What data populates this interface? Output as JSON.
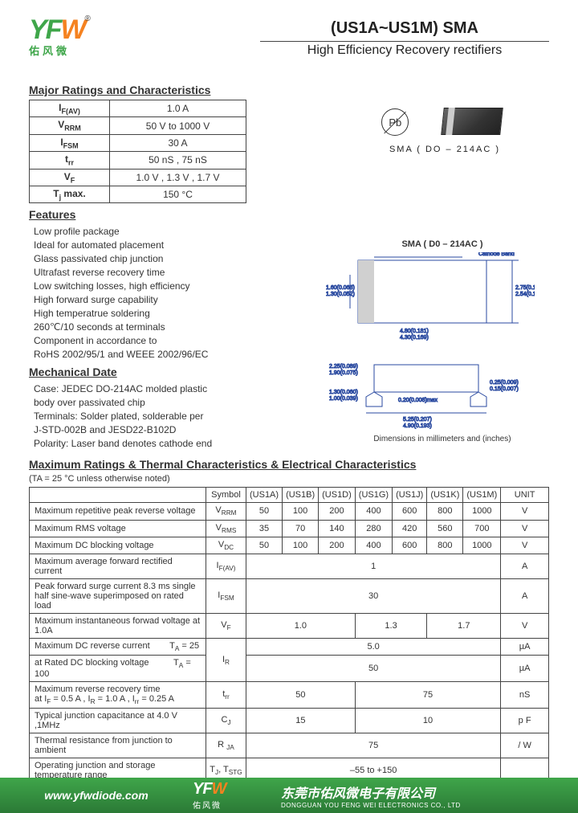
{
  "logo": {
    "cn": "佑风微",
    "reg": "®"
  },
  "title": {
    "main": "(US1A~US1M)  SMA",
    "sub": "High Efficiency Recovery rectifiers"
  },
  "sections": {
    "ratings": "Major Ratings and Characteristics",
    "features": "Features",
    "mechanical": "Mechanical Date",
    "maxratings": "Maximum Ratings & Thermal Characteristics & Electrical Characteristics"
  },
  "ratings_table": [
    {
      "sym": "I",
      "sub": "F(AV)",
      "val": "1.0 A"
    },
    {
      "sym": "V",
      "sub": "RRM",
      "val": "50 V to 1000 V"
    },
    {
      "sym": "I",
      "sub": "FSM",
      "val": "30 A"
    },
    {
      "sym": "t",
      "sub": "rr",
      "val": "50 nS , 75 nS"
    },
    {
      "sym": "V",
      "sub": "F",
      "val": "1.0 V , 1.3 V , 1.7 V"
    },
    {
      "sym": "T",
      "sub": "j",
      "suffix": " max.",
      "val": "150 °C"
    }
  ],
  "package": {
    "pb": "Pb",
    "label": "SMA ( DO – 214AC )",
    "mech_title": "SMA ( D0 – 214AC )",
    "dim_caption": "Dimensions in millimeters and (inches)"
  },
  "features": [
    "Low profile package",
    "Ideal for automated placement",
    "Glass passivated chip junction",
    "Ultrafast reverse recovery time",
    "Low switching losses, high efficiency",
    "High forward surge capability",
    "High temperatrue soldering",
    "260℃/10 seconds at terminals",
    "Component in accordance to",
    "RoHS 2002/95/1 and WEEE 2002/96/EC"
  ],
  "mechanical": [
    "Case: JEDEC DO-214AC molded plastic",
    "body over passivated chip",
    "Terminals: Solder plated, solderable per",
    "J-STD-002B and JESD22-B102D",
    "Polarity: Laser band denotes cathode end"
  ],
  "condition": "(TA = 25 °C unless otherwise noted)",
  "max_table": {
    "head": [
      "",
      "Symbol",
      "(US1A)",
      "(US1B)",
      "(US1D)",
      "(US1G)",
      "(US1J)",
      "(US1K)",
      "(US1M)",
      "UNIT"
    ],
    "rows": [
      {
        "p": "Maximum repetitive peak reverse voltage",
        "s": "V<sub>RRM</sub>",
        "v": [
          "50",
          "100",
          "200",
          "400",
          "600",
          "800",
          "1000"
        ],
        "u": "V"
      },
      {
        "p": "Maximum RMS voltage",
        "s": "V<sub>RMS</sub>",
        "v": [
          "35",
          "70",
          "140",
          "280",
          "420",
          "560",
          "700"
        ],
        "u": "V"
      },
      {
        "p": "Maximum DC blocking voltage",
        "s": "V<sub>DC</sub>",
        "v": [
          "50",
          "100",
          "200",
          "400",
          "600",
          "800",
          "1000"
        ],
        "u": "V"
      },
      {
        "p": "Maximum average forward rectified current",
        "s": "I<sub>F(AV)</sub>",
        "span": "1",
        "u": "A"
      },
      {
        "p": "Peak forward surge current 8.3 ms single half sine-wave superimposed on rated load",
        "s": "I<sub>FSM</sub>",
        "span": "30",
        "u": "A"
      },
      {
        "p": "Maximum instantaneous forwad voltage at 1.0A",
        "s": "V<sub>F</sub>",
        "groups": [
          [
            "1.0",
            3
          ],
          [
            "1.3",
            2
          ],
          [
            "1.7",
            2
          ]
        ],
        "u": "V"
      }
    ],
    "ir": {
      "p1": "Maximum DC reverse current",
      "p2": "at Rated DC blocking voltage",
      "c1": "T<sub>A</sub> = 25",
      "c2": "T<sub>A</sub> = 100",
      "s": "I<sub>R</sub>",
      "v1": "5.0",
      "v2": "50",
      "u": "µA"
    },
    "trr": {
      "p": "Maximum reverse recovery time<br>at I<sub>F</sub> = 0.5 A , I<sub>R</sub> = 1.0 A , I<sub>rr</sub> = 0.25 A",
      "s": "t<sub>rr</sub>",
      "groups": [
        [
          "50",
          3
        ],
        [
          "75",
          4
        ]
      ],
      "u": "nS"
    },
    "cj": {
      "p": "Typical junction capacitance at 4.0 V ,1MHz",
      "s": "C<sub>J</sub>",
      "groups": [
        [
          "15",
          3
        ],
        [
          "10",
          4
        ]
      ],
      "u": "p F"
    },
    "rja": {
      "p": "Thermal resistance from junction to ambient",
      "s": "R <sub>JA</sub>",
      "span": "75",
      "u": "/ W"
    },
    "tstg": {
      "p": "Operating junction and storage temperature range",
      "s": "T<sub>J</sub>, T<sub>STG</sub>",
      "span": "–55 to +150",
      "u": ""
    }
  },
  "footer": {
    "url": "www.yfwdiode.com",
    "logo_cn": "佑风微",
    "company_cn": "东莞市佑风微电子有限公司",
    "company_en": "DONGGUAN YOU FENG WEI ELECTRONICS CO., LTD"
  },
  "colors": {
    "brand_green": "#3fa64a",
    "brand_orange": "#f58220",
    "diagram_blue": "#2a4aa0",
    "border": "#444444"
  }
}
